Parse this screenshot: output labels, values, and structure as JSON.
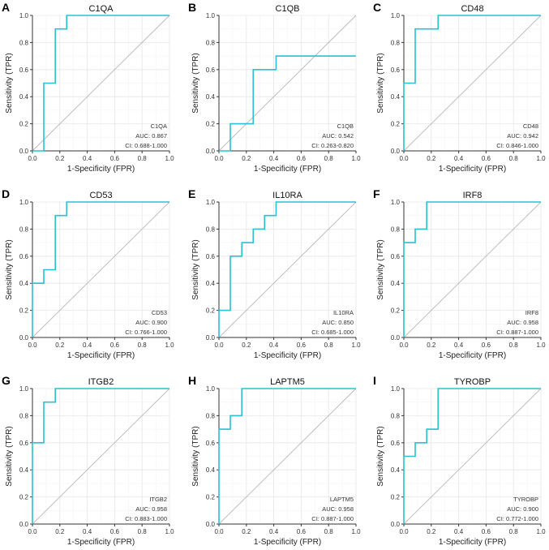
{
  "chart_data": [
    {
      "type": "line",
      "panel_letter": "A",
      "title": "C1QA",
      "xlabel": "1-Specificity (FPR)",
      "ylabel": "Sensitivity (TPR)",
      "xlim": [
        0,
        1
      ],
      "ylim": [
        0,
        1
      ],
      "grid": true,
      "xticks": [
        "0.0",
        "0.2",
        "0.4",
        "0.6",
        "0.8",
        "1.0"
      ],
      "yticks": [
        "0.0",
        "0.2",
        "0.4",
        "0.6",
        "0.8",
        "1.0"
      ],
      "series": [
        {
          "name": "C1QA",
          "color": "#2bbfd4",
          "x": [
            0,
            0.083,
            0.083,
            0.167,
            0.167,
            0.25,
            0.25,
            1
          ],
          "y": [
            0,
            0,
            0.5,
            0.5,
            0.9,
            0.9,
            1,
            1
          ]
        }
      ],
      "annotation": {
        "name": "C1QA",
        "auc": "AUC: 0.867",
        "ci": "CI: 0.688-1.000"
      }
    },
    {
      "type": "line",
      "panel_letter": "B",
      "title": "C1QB",
      "xlabel": "1-Specificity (FPR)",
      "ylabel": "Sensitivity (TPR)",
      "xlim": [
        0,
        1
      ],
      "ylim": [
        0,
        1
      ],
      "grid": true,
      "xticks": [
        "0.0",
        "0.2",
        "0.4",
        "0.6",
        "0.8",
        "1.0"
      ],
      "yticks": [
        "0.0",
        "0.2",
        "0.4",
        "0.6",
        "0.8",
        "1.0"
      ],
      "series": [
        {
          "name": "C1QB",
          "color": "#2bbfd4",
          "x": [
            0,
            0.083,
            0.083,
            0.25,
            0.25,
            0.417,
            0.417,
            1
          ],
          "y": [
            0,
            0,
            0.2,
            0.2,
            0.6,
            0.6,
            0.7,
            0.7
          ]
        }
      ],
      "annotation": {
        "name": "C1QB",
        "auc": "AUC: 0.542",
        "ci": "CI: 0.263-0.820"
      }
    },
    {
      "type": "line",
      "panel_letter": "C",
      "title": "CD48",
      "xlabel": "1-Specificity (FPR)",
      "ylabel": "Sensitivity (TPR)",
      "xlim": [
        0,
        1
      ],
      "ylim": [
        0,
        1
      ],
      "grid": true,
      "xticks": [
        "0.0",
        "0.2",
        "0.4",
        "0.6",
        "0.8",
        "1.0"
      ],
      "yticks": [
        "0.0",
        "0.2",
        "0.4",
        "0.6",
        "0.8",
        "1.0"
      ],
      "series": [
        {
          "name": "CD48",
          "color": "#2bbfd4",
          "x": [
            0,
            0,
            0.083,
            0.083,
            0.25,
            0.25,
            1
          ],
          "y": [
            0,
            0.5,
            0.5,
            0.9,
            0.9,
            1,
            1
          ]
        }
      ],
      "annotation": {
        "name": "CD48",
        "auc": "AUC: 0.942",
        "ci": "CI: 0.846-1.000"
      }
    },
    {
      "type": "line",
      "panel_letter": "D",
      "title": "CD53",
      "xlabel": "1-Specificity (FPR)",
      "ylabel": "Sensitivity (TPR)",
      "xlim": [
        0,
        1
      ],
      "ylim": [
        0,
        1
      ],
      "grid": true,
      "xticks": [
        "0.0",
        "0.2",
        "0.4",
        "0.6",
        "0.8",
        "1.0"
      ],
      "yticks": [
        "0.0",
        "0.2",
        "0.4",
        "0.6",
        "0.8",
        "1.0"
      ],
      "series": [
        {
          "name": "CD53",
          "color": "#2bbfd4",
          "x": [
            0,
            0,
            0.083,
            0.083,
            0.167,
            0.167,
            0.25,
            0.25,
            1
          ],
          "y": [
            0,
            0.4,
            0.4,
            0.5,
            0.5,
            0.9,
            0.9,
            1,
            1
          ]
        }
      ],
      "annotation": {
        "name": "CD53",
        "auc": "AUC: 0.900",
        "ci": "CI: 0.766-1.000"
      }
    },
    {
      "type": "line",
      "panel_letter": "E",
      "title": "IL10RA",
      "xlabel": "1-Specificity (FPR)",
      "ylabel": "Sensitivity (TPR)",
      "xlim": [
        0,
        1
      ],
      "ylim": [
        0,
        1
      ],
      "grid": true,
      "xticks": [
        "0.0",
        "0.2",
        "0.4",
        "0.6",
        "0.8",
        "1.0"
      ],
      "yticks": [
        "0.0",
        "0.2",
        "0.4",
        "0.6",
        "0.8",
        "1.0"
      ],
      "series": [
        {
          "name": "IL10RA",
          "color": "#2bbfd4",
          "x": [
            0,
            0,
            0.083,
            0.083,
            0.167,
            0.167,
            0.25,
            0.25,
            0.333,
            0.333,
            0.417,
            0.417,
            1
          ],
          "y": [
            0,
            0.2,
            0.2,
            0.6,
            0.6,
            0.7,
            0.7,
            0.8,
            0.8,
            0.9,
            0.9,
            1,
            1
          ]
        }
      ],
      "annotation": {
        "name": "IL10RA",
        "auc": "AUC: 0.850",
        "ci": "CI: 0.685-1.000"
      }
    },
    {
      "type": "line",
      "panel_letter": "F",
      "title": "IRF8",
      "xlabel": "1-Specificity (FPR)",
      "ylabel": "Sensitivity (TPR)",
      "xlim": [
        0,
        1
      ],
      "ylim": [
        0,
        1
      ],
      "grid": true,
      "xticks": [
        "0.0",
        "0.2",
        "0.4",
        "0.6",
        "0.8",
        "1.0"
      ],
      "yticks": [
        "0.0",
        "0.2",
        "0.4",
        "0.6",
        "0.8",
        "1.0"
      ],
      "series": [
        {
          "name": "IRF8",
          "color": "#2bbfd4",
          "x": [
            0,
            0,
            0.083,
            0.083,
            0.167,
            0.167,
            1
          ],
          "y": [
            0,
            0.7,
            0.7,
            0.8,
            0.8,
            1,
            1
          ]
        }
      ],
      "annotation": {
        "name": "IRF8",
        "auc": "AUC: 0.958",
        "ci": "CI: 0.887-1.000"
      }
    },
    {
      "type": "line",
      "panel_letter": "G",
      "title": "ITGB2",
      "xlabel": "1-Specificity (FPR)",
      "ylabel": "Sensitivity (TPR)",
      "xlim": [
        0,
        1
      ],
      "ylim": [
        0,
        1
      ],
      "grid": true,
      "xticks": [
        "0.0",
        "0.2",
        "0.4",
        "0.6",
        "0.8",
        "1.0"
      ],
      "yticks": [
        "0.0",
        "0.2",
        "0.4",
        "0.6",
        "0.8",
        "1.0"
      ],
      "series": [
        {
          "name": "ITGB2",
          "color": "#2bbfd4",
          "x": [
            0,
            0,
            0.083,
            0.083,
            0.167,
            0.167,
            1
          ],
          "y": [
            0,
            0.6,
            0.6,
            0.9,
            0.9,
            1,
            1
          ]
        }
      ],
      "annotation": {
        "name": "ITGB2",
        "auc": "AUC: 0.958",
        "ci": "CI: 0.883-1.000"
      }
    },
    {
      "type": "line",
      "panel_letter": "H",
      "title": "LAPTM5",
      "xlabel": "1-Specificity (FPR)",
      "ylabel": "Sensitivity (TPR)",
      "xlim": [
        0,
        1
      ],
      "ylim": [
        0,
        1
      ],
      "grid": true,
      "xticks": [
        "0.0",
        "0.2",
        "0.4",
        "0.6",
        "0.8",
        "1.0"
      ],
      "yticks": [
        "0.0",
        "0.2",
        "0.4",
        "0.6",
        "0.8",
        "1.0"
      ],
      "series": [
        {
          "name": "LAPTM5",
          "color": "#2bbfd4",
          "x": [
            0,
            0,
            0.083,
            0.083,
            0.167,
            0.167,
            1
          ],
          "y": [
            0,
            0.7,
            0.7,
            0.8,
            0.8,
            1,
            1
          ]
        }
      ],
      "annotation": {
        "name": "LAPTM5",
        "auc": "AUC: 0.958",
        "ci": "CI: 0.887-1.000"
      }
    },
    {
      "type": "line",
      "panel_letter": "I",
      "title": "TYROBP",
      "xlabel": "1-Specificity (FPR)",
      "ylabel": "Sensitivity (TPR)",
      "xlim": [
        0,
        1
      ],
      "ylim": [
        0,
        1
      ],
      "grid": true,
      "xticks": [
        "0.0",
        "0.2",
        "0.4",
        "0.6",
        "0.8",
        "1.0"
      ],
      "yticks": [
        "0.0",
        "0.2",
        "0.4",
        "0.6",
        "0.8",
        "1.0"
      ],
      "series": [
        {
          "name": "TYROBP",
          "color": "#2bbfd4",
          "x": [
            0,
            0,
            0.083,
            0.083,
            0.167,
            0.167,
            0.25,
            0.25,
            1
          ],
          "y": [
            0,
            0.5,
            0.5,
            0.6,
            0.6,
            0.7,
            0.7,
            1,
            1
          ]
        }
      ],
      "annotation": {
        "name": "TYROBP",
        "auc": "AUC: 0.900",
        "ci": "CI: 0.772-1.000"
      }
    }
  ]
}
